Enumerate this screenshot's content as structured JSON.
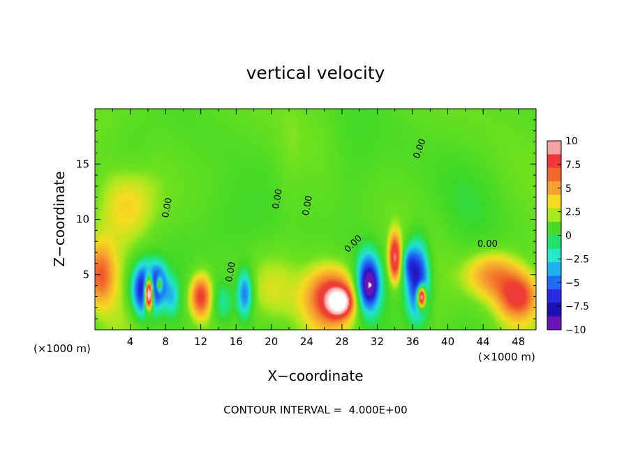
{
  "chart_data": {
    "type": "heatmap",
    "title": "vertical velocity",
    "xlabel": "X−coordinate",
    "ylabel": "Z−coordinate",
    "x_unit_label": "(×1000 m)",
    "x_unit_label_right": "(×1000 m)",
    "xlim": [
      0,
      50
    ],
    "ylim": [
      0,
      20
    ],
    "x_ticks": [
      4,
      8,
      12,
      16,
      20,
      24,
      28,
      32,
      36,
      40,
      44,
      48
    ],
    "y_ticks": [
      5,
      10,
      15
    ],
    "contour_interval_text": "CONTOUR INTERVAL =  4.000E+00",
    "contour_labels": [
      {
        "text": "0.00",
        "x": 8.5,
        "y": 11.0,
        "rot": -80
      },
      {
        "text": "0.00",
        "x": 15.7,
        "y": 5.2,
        "rot": -80
      },
      {
        "text": "0.00",
        "x": 21.0,
        "y": 11.8,
        "rot": -80
      },
      {
        "text": "0.00",
        "x": 24.4,
        "y": 11.2,
        "rot": -80
      },
      {
        "text": "0.00",
        "x": 29.5,
        "y": 7.6,
        "rot": -45
      },
      {
        "text": "0.00",
        "x": 37.1,
        "y": 16.3,
        "rot": -70
      },
      {
        "text": "0.00",
        "x": 44.5,
        "y": 7.5,
        "rot": 0
      }
    ],
    "colorbar": {
      "ticks": [
        10,
        7.5,
        5,
        2.5,
        0,
        -2.5,
        -5,
        -7.5,
        -10
      ],
      "tick_labels": [
        "10",
        "7.5",
        "5",
        "2.5",
        "0",
        "−2.5",
        "−5",
        "−7.5",
        "−10"
      ],
      "colors": [
        "#f6a3a3",
        "#f0383a",
        "#f26a2a",
        "#f5a233",
        "#f6dc1e",
        "#a8e81f",
        "#4ad82a",
        "#21e36b",
        "#24eac8",
        "#1fb0f0",
        "#1f6df2",
        "#2a2ae0",
        "#1a10b4",
        "#6a14b8"
      ]
    },
    "background_value": 1.2,
    "features": [
      {
        "x": 0.6,
        "z": 5.0,
        "amp": 5.0,
        "sx": 1.2,
        "sz": 2.0
      },
      {
        "x": 5.7,
        "z": 3.6,
        "amp": -11.5,
        "sx": 1.0,
        "sz": 1.6
      },
      {
        "x": 6.1,
        "z": 3.3,
        "amp": 22.0,
        "sx": 0.35,
        "sz": 1.0
      },
      {
        "x": 7.3,
        "z": 4.2,
        "amp": -6.0,
        "sx": 0.6,
        "sz": 1.2
      },
      {
        "x": 7.3,
        "z": 4.1,
        "amp": 10.0,
        "sx": 0.25,
        "sz": 0.5
      },
      {
        "x": 8.7,
        "z": 3.0,
        "amp": -3.5,
        "sx": 0.6,
        "sz": 1.2
      },
      {
        "x": 12.0,
        "z": 3.0,
        "amp": 7.0,
        "sx": 0.9,
        "sz": 1.4
      },
      {
        "x": 14.5,
        "z": 2.5,
        "amp": -2.8,
        "sx": 0.9,
        "sz": 1.4
      },
      {
        "x": 17.0,
        "z": 3.3,
        "amp": -6.5,
        "sx": 0.6,
        "sz": 1.5
      },
      {
        "x": 20.0,
        "z": 3.5,
        "amp": 2.0,
        "sx": 2.0,
        "sz": 2.5
      },
      {
        "x": 27.0,
        "z": 3.0,
        "amp": 7.0,
        "sx": 2.0,
        "sz": 1.8
      },
      {
        "x": 27.7,
        "z": 2.5,
        "amp": 9.0,
        "sx": 0.9,
        "sz": 0.8
      },
      {
        "x": 31.0,
        "z": 4.2,
        "amp": -10.5,
        "sx": 0.9,
        "sz": 1.8
      },
      {
        "x": 31.2,
        "z": 4.0,
        "amp": -5.0,
        "sx": 0.4,
        "sz": 0.7
      },
      {
        "x": 34.0,
        "z": 6.5,
        "amp": 8.5,
        "sx": 0.5,
        "sz": 1.5
      },
      {
        "x": 36.6,
        "z": 4.5,
        "amp": -10.0,
        "sx": 0.9,
        "sz": 2.4
      },
      {
        "x": 37.0,
        "z": 3.0,
        "amp": 16.0,
        "sx": 0.35,
        "sz": 0.7
      },
      {
        "x": 35.6,
        "z": 6.0,
        "amp": -4.0,
        "sx": 0.5,
        "sz": 1.0
      },
      {
        "x": 45.0,
        "z": 5.0,
        "amp": 4.5,
        "sx": 2.2,
        "sz": 1.5
      },
      {
        "x": 48.0,
        "z": 3.0,
        "amp": 6.0,
        "sx": 1.6,
        "sz": 1.4
      },
      {
        "x": 3.5,
        "z": 11.0,
        "amp": 2.8,
        "sx": 2.5,
        "sz": 2.8
      },
      {
        "x": 4.0,
        "z": 16.0,
        "amp": -1.3,
        "sx": 2.0,
        "sz": 2.2
      },
      {
        "x": 15.0,
        "z": 9.0,
        "amp": -1.5,
        "sx": 3.0,
        "sz": 3.0
      },
      {
        "x": 22.0,
        "z": 14.0,
        "amp": 0.6,
        "sx": 1.0,
        "sz": 4.0
      },
      {
        "x": 29.0,
        "z": 15.0,
        "amp": -1.0,
        "sx": 2.0,
        "sz": 4.0
      },
      {
        "x": 42.0,
        "z": 12.0,
        "amp": -0.8,
        "sx": 3.0,
        "sz": 4.0
      }
    ]
  }
}
